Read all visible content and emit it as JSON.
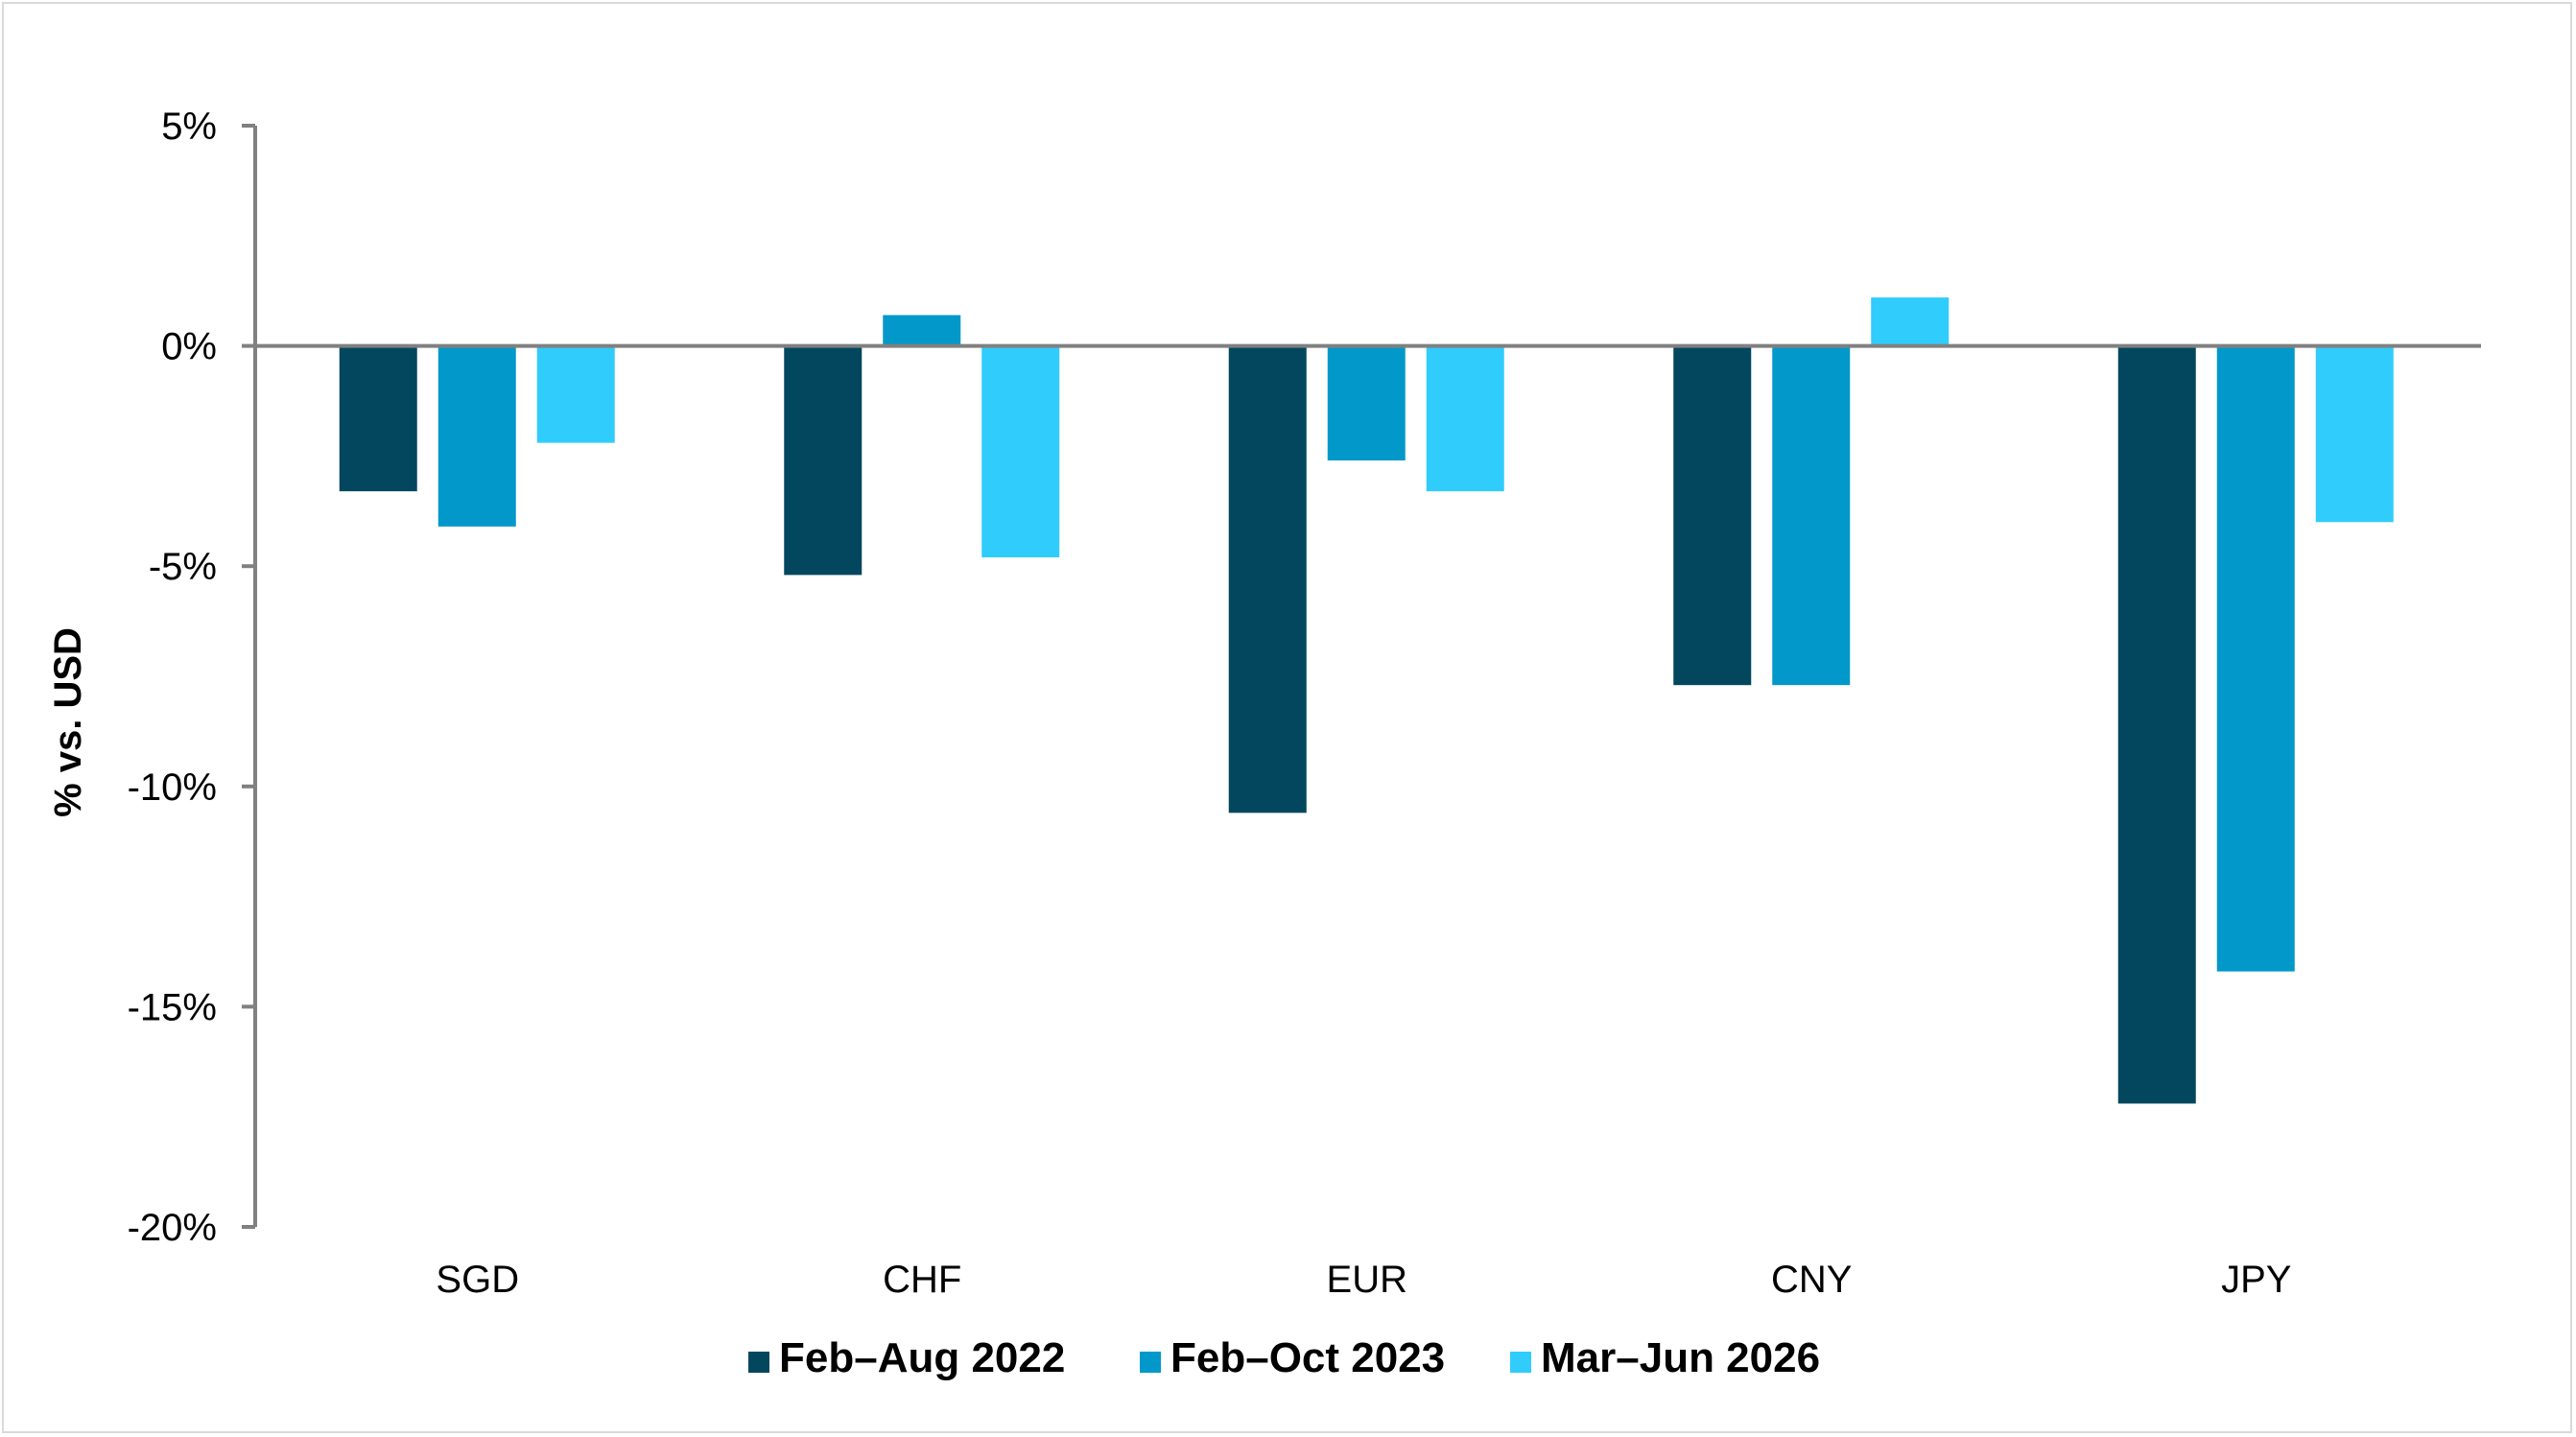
{
  "chart_data": {
    "type": "bar",
    "title": "",
    "xlabel": "",
    "ylabel": "% vs. USD",
    "categories": [
      "SGD",
      "CHF",
      "EUR",
      "CNY",
      "JPY"
    ],
    "series": [
      {
        "name": "Feb–Aug 2022",
        "color": "#02475e",
        "values": [
          -3.3,
          -5.2,
          -10.6,
          -7.7,
          -17.2
        ]
      },
      {
        "name": "Feb–Oct 2023",
        "color": "#0298c9",
        "values": [
          -4.1,
          0.7,
          -2.6,
          -7.7,
          -14.2
        ]
      },
      {
        "name": "Mar–Jun 2026",
        "color": "#30ccfc",
        "values": [
          -2.2,
          -4.8,
          -3.3,
          1.1,
          -4.0
        ]
      }
    ],
    "ylim": [
      -20,
      5
    ],
    "yticks": [
      5,
      0,
      -5,
      -10,
      -15,
      -20
    ],
    "ytick_labels": [
      "5%",
      "0%",
      "-5%",
      "-10%",
      "-15%",
      "-20%"
    ],
    "grid": false,
    "legend_position": "bottom"
  }
}
